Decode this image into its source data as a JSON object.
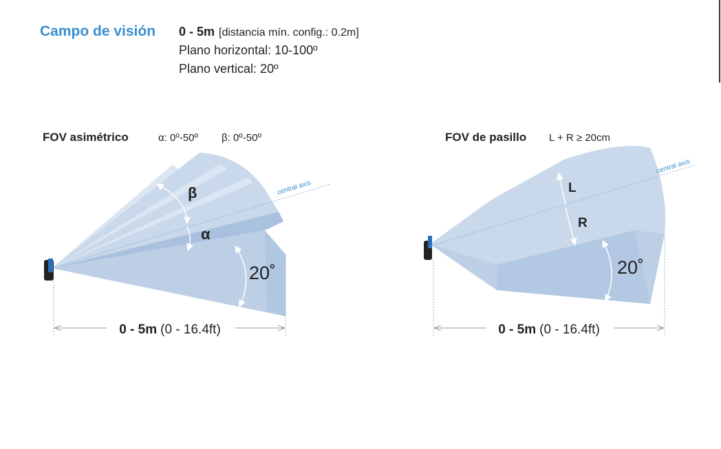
{
  "header": {
    "title": "Campo de visión",
    "range": "0 - 5m",
    "range_note": "[distancia mín. config.: 0.2m]",
    "lines": [
      "Plano horizontal: 10-100º",
      "Plano vertical: 20º"
    ]
  },
  "panels": [
    {
      "title": "FOV asimétrico",
      "specs": [
        "α: 0º-50º",
        "β: 0º-50º"
      ],
      "axis_label": "central axis",
      "angle_labels": [
        "β",
        "α"
      ],
      "vertical_angle": "20˚",
      "distance": "0 - 5m",
      "distance_ft": "(0 - 16.4ft)"
    },
    {
      "title": "FOV de pasillo",
      "specs": [
        "L + R ≥ 20cm"
      ],
      "axis_label": "central axis",
      "angle_labels": [
        "L",
        "R"
      ],
      "vertical_angle": "20˚",
      "distance": "0 - 5m",
      "distance_ft": "(0 - 16.4ft)"
    }
  ]
}
